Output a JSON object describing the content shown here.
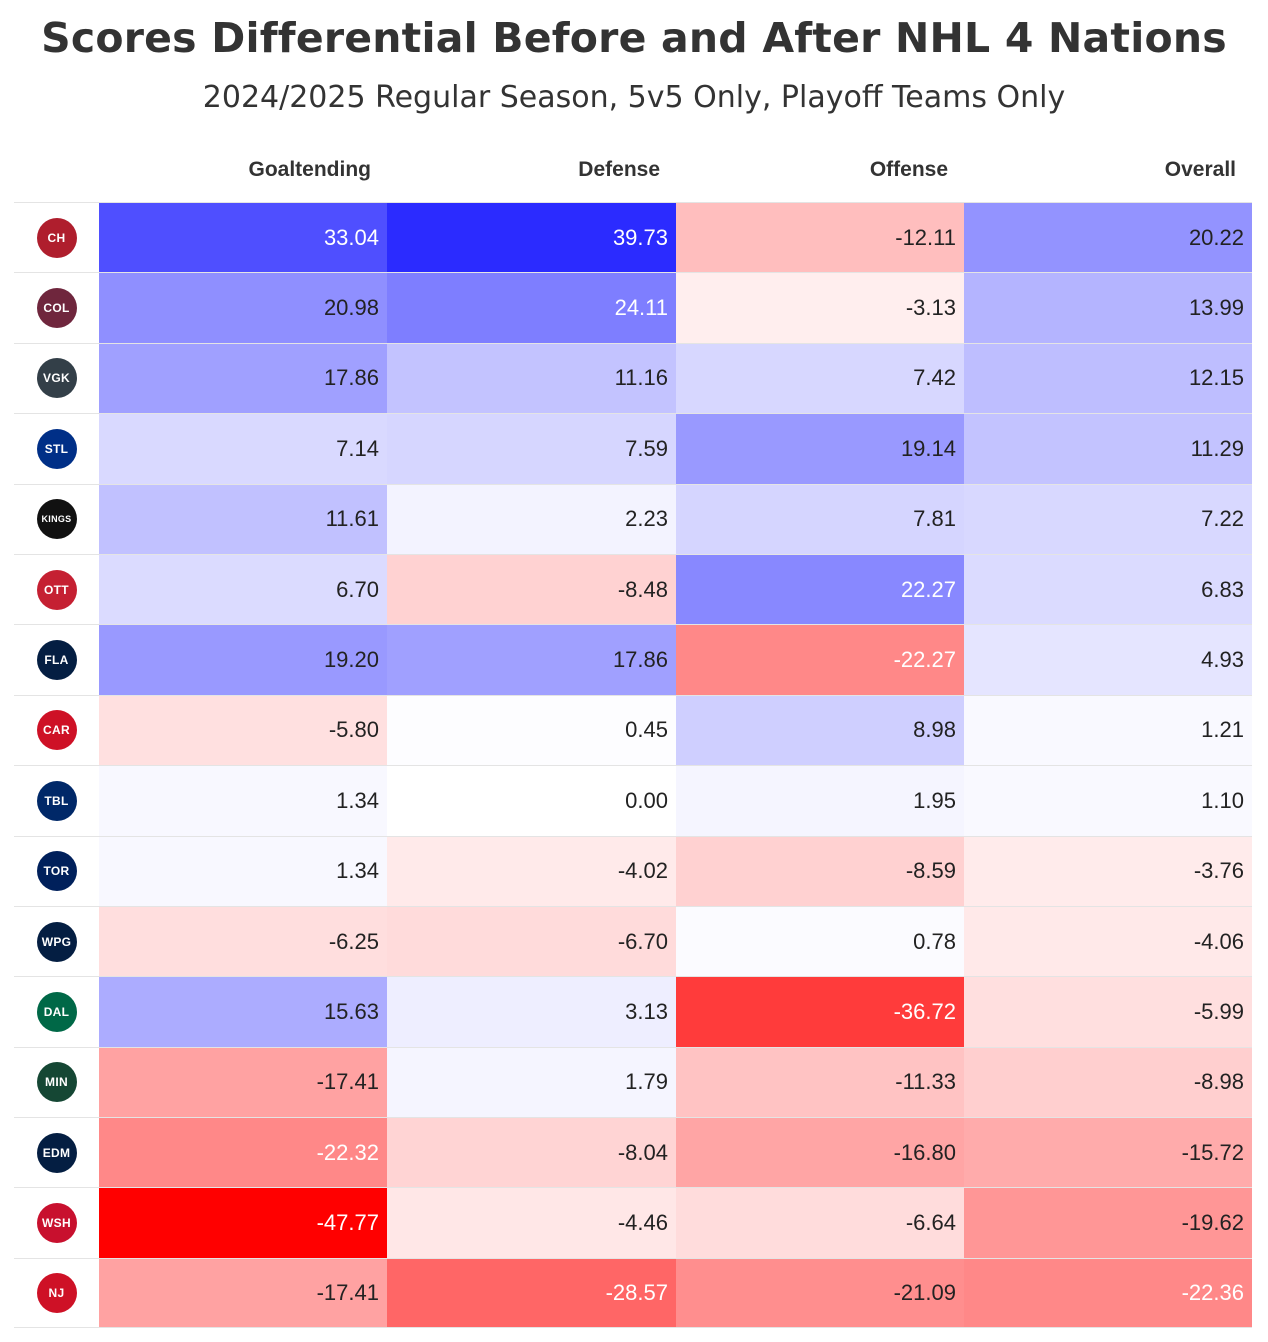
{
  "title": "Scores Differential Before and After NHL 4 Nations",
  "subtitle": "2024/2025 Regular Season, 5v5 Only, Playoff Teams Only",
  "chart_data": {
    "type": "heatmap",
    "columns": [
      "Goaltending",
      "Defense",
      "Offense",
      "Overall"
    ],
    "color_scale": {
      "negative": "#ff0000",
      "zero": "#ffffff",
      "positive": "#0000ff",
      "max_abs": 47.77
    },
    "rows": [
      {
        "team": "Montreal Canadiens",
        "icon": "canadiens-logo-icon",
        "color": "#af1e2d",
        "abbr": "CH",
        "values": [
          "33.04",
          "39.73",
          "-12.11",
          "20.22"
        ]
      },
      {
        "team": "Colorado Avalanche",
        "icon": "avalanche-logo-icon",
        "color": "#6f263d",
        "abbr": "COL",
        "values": [
          "20.98",
          "24.11",
          "-3.13",
          "13.99"
        ]
      },
      {
        "team": "Vegas Golden Knights",
        "icon": "golden-knights-logo-icon",
        "color": "#333f48",
        "abbr": "VGK",
        "values": [
          "17.86",
          "11.16",
          "7.42",
          "12.15"
        ]
      },
      {
        "team": "St. Louis Blues",
        "icon": "blues-logo-icon",
        "color": "#002f87",
        "abbr": "STL",
        "values": [
          "7.14",
          "7.59",
          "19.14",
          "11.29"
        ]
      },
      {
        "team": "Los Angeles Kings",
        "icon": "kings-logo-icon",
        "color": "#111111",
        "abbr": "KINGS",
        "values": [
          "11.61",
          "2.23",
          "7.81",
          "7.22"
        ]
      },
      {
        "team": "Ottawa Senators",
        "icon": "senators-logo-icon",
        "color": "#c52032",
        "abbr": "OTT",
        "values": [
          "6.70",
          "-8.48",
          "22.27",
          "6.83"
        ]
      },
      {
        "team": "Florida Panthers",
        "icon": "panthers-logo-icon",
        "color": "#041e42",
        "abbr": "FLA",
        "values": [
          "19.20",
          "17.86",
          "-22.27",
          "4.93"
        ]
      },
      {
        "team": "Carolina Hurricanes",
        "icon": "hurricanes-logo-icon",
        "color": "#ce1126",
        "abbr": "CAR",
        "values": [
          "-5.80",
          "0.45",
          "8.98",
          "1.21"
        ]
      },
      {
        "team": "Tampa Bay Lightning",
        "icon": "lightning-logo-icon",
        "color": "#002868",
        "abbr": "TBL",
        "values": [
          "1.34",
          "0.00",
          "1.95",
          "1.10"
        ]
      },
      {
        "team": "Toronto Maple Leafs",
        "icon": "maple-leafs-logo-icon",
        "color": "#00205b",
        "abbr": "TOR",
        "values": [
          "1.34",
          "-4.02",
          "-8.59",
          "-3.76"
        ]
      },
      {
        "team": "Winnipeg Jets",
        "icon": "jets-logo-icon",
        "color": "#041e42",
        "abbr": "WPG",
        "values": [
          "-6.25",
          "-6.70",
          "0.78",
          "-4.06"
        ]
      },
      {
        "team": "Dallas Stars",
        "icon": "stars-logo-icon",
        "color": "#006847",
        "abbr": "DAL",
        "values": [
          "15.63",
          "3.13",
          "-36.72",
          "-5.99"
        ]
      },
      {
        "team": "Minnesota Wild",
        "icon": "wild-logo-icon",
        "color": "#154734",
        "abbr": "MIN",
        "values": [
          "-17.41",
          "1.79",
          "-11.33",
          "-8.98"
        ]
      },
      {
        "team": "Edmonton Oilers",
        "icon": "oilers-logo-icon",
        "color": "#041e42",
        "abbr": "EDM",
        "values": [
          "-22.32",
          "-8.04",
          "-16.80",
          "-15.72"
        ]
      },
      {
        "team": "Washington Capitals",
        "icon": "capitals-logo-icon",
        "color": "#c8102e",
        "abbr": "WSH",
        "values": [
          "-47.77",
          "-4.46",
          "-6.64",
          "-19.62"
        ]
      },
      {
        "team": "New Jersey Devils",
        "icon": "devils-logo-icon",
        "color": "#ce1126",
        "abbr": "NJ",
        "values": [
          "-17.41",
          "-28.57",
          "-21.09",
          "-22.36"
        ]
      }
    ]
  }
}
